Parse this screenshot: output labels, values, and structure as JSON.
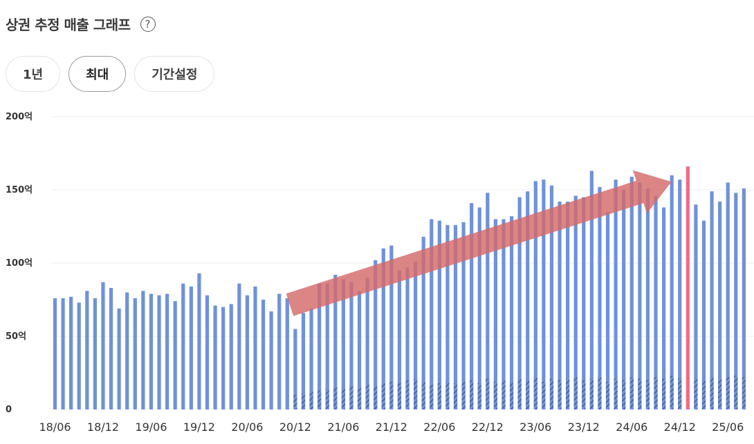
{
  "header": {
    "title": "상권 추정 매출 그래프",
    "help_icon": "question-circle-icon",
    "help_label": "?"
  },
  "period": {
    "options": [
      "1년",
      "최대",
      "기간설정"
    ],
    "selected": "최대"
  },
  "colors": {
    "bar": "#6f92d8",
    "hatch": "#3a4f86",
    "highlight": "#f06a8a",
    "arrow": "#d46a6a",
    "grid": "#efefef"
  },
  "chart_data": {
    "type": "bar",
    "yunit": "억",
    "ylim": [
      0,
      200
    ],
    "yticks": [
      "0",
      "50억",
      "100억",
      "150억",
      "200억"
    ],
    "xtick_labels": [
      "18/06",
      "18/12",
      "19/06",
      "19/12",
      "20/06",
      "20/12",
      "21/06",
      "21/12",
      "22/06",
      "22/12",
      "23/06",
      "23/12",
      "24/06",
      "24/12",
      "25/06"
    ],
    "start": "2018-06",
    "values": [
      76,
      76,
      77,
      73,
      81,
      76,
      87,
      83,
      69,
      80,
      76,
      81,
      79,
      78,
      79,
      74,
      86,
      84,
      93,
      78,
      71,
      70,
      72,
      86,
      78,
      84,
      75,
      67,
      79,
      76,
      55,
      66,
      69,
      86,
      86,
      92,
      89,
      87,
      81,
      90,
      102,
      110,
      112,
      95,
      97,
      101,
      118,
      130,
      129,
      126,
      126,
      128,
      141,
      138,
      148,
      130,
      130,
      132,
      145,
      149,
      156,
      157,
      153,
      142,
      142,
      146,
      145,
      163,
      152,
      135,
      157,
      150,
      159,
      155,
      151,
      146,
      138,
      160,
      157,
      166,
      140,
      129,
      149,
      142,
      155,
      148,
      151
    ],
    "hatched_values": [
      0,
      0,
      0,
      0,
      0,
      0,
      0,
      0,
      0,
      0,
      0,
      0,
      0,
      0,
      0,
      0,
      0,
      0,
      0,
      0,
      0,
      0,
      0,
      0,
      0,
      0,
      0,
      0,
      0,
      0,
      10,
      11,
      12,
      13,
      14,
      15,
      14,
      16,
      15,
      17,
      16,
      18,
      19,
      18,
      20,
      21,
      19,
      17,
      18,
      19,
      18,
      19,
      20,
      18,
      21,
      19,
      20,
      18,
      21,
      20,
      22,
      19,
      21,
      20,
      21,
      22,
      20,
      21,
      22,
      19,
      21,
      20,
      22,
      21,
      20,
      22,
      21,
      23,
      21,
      22,
      21,
      20,
      22,
      21,
      22,
      23,
      22
    ],
    "highlight_index": 79,
    "trend_arrow": {
      "from": "2020-12",
      "to": "2024-12"
    },
    "grid": true,
    "legend": "none"
  }
}
